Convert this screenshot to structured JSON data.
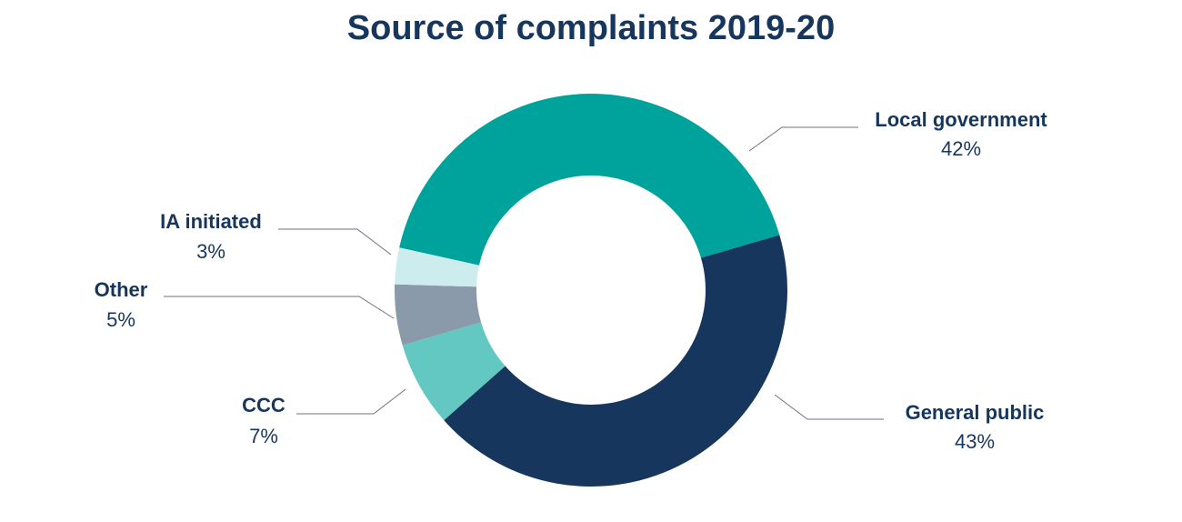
{
  "chart_data": {
    "type": "pie",
    "title": "Source of complaints 2019-20",
    "slices": [
      {
        "label": "Local government",
        "value": 42,
        "value_label": "42%",
        "color": "#00a39b"
      },
      {
        "label": "General public",
        "value": 43,
        "value_label": "43%",
        "color": "#17365d"
      },
      {
        "label": "CCC",
        "value": 7,
        "value_label": "7%",
        "color": "#63c7c2"
      },
      {
        "label": "Other",
        "value": 5,
        "value_label": "5%",
        "color": "#8a9aab"
      },
      {
        "label": "IA initiated",
        "value": 3,
        "value_label": "3%",
        "color": "#cceced"
      }
    ]
  }
}
